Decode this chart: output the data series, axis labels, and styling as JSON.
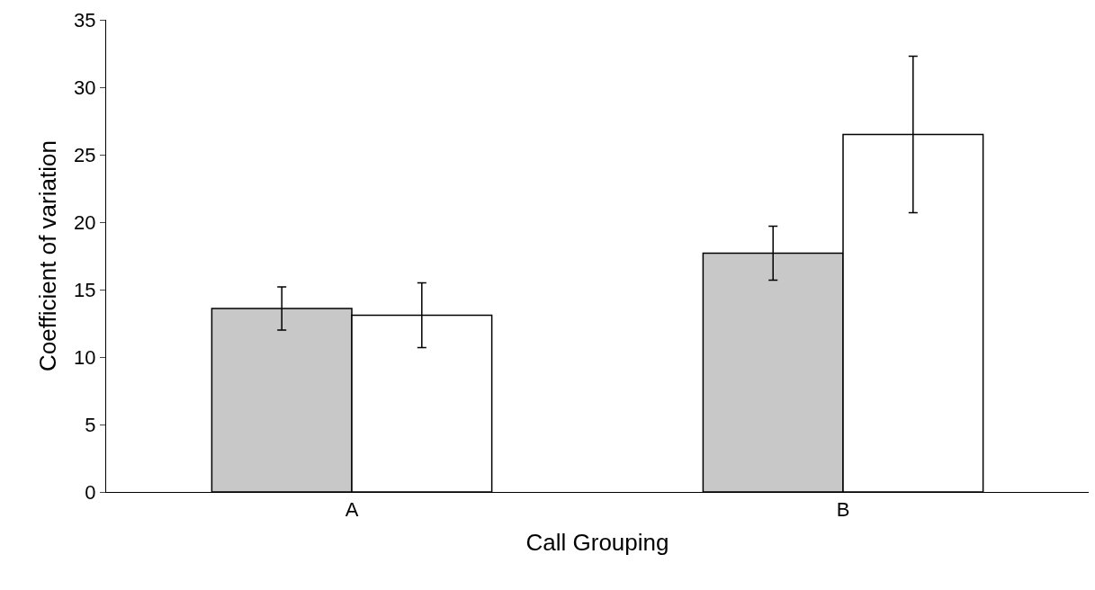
{
  "chart_data": {
    "type": "bar",
    "xlabel": "Call Grouping",
    "ylabel": "Coefficient of variation",
    "categories": [
      "A",
      "B"
    ],
    "series": [
      {
        "color": "#c8c8c8",
        "values": [
          13.6,
          17.7
        ],
        "errors": [
          1.6,
          2.0
        ]
      },
      {
        "color": "#ffffff",
        "values": [
          13.1,
          26.5
        ],
        "errors": [
          2.4,
          5.8
        ]
      }
    ],
    "ylim": [
      0,
      35
    ],
    "yticks": [
      0,
      5,
      10,
      15,
      20,
      25,
      30,
      35
    ],
    "grid": false
  }
}
